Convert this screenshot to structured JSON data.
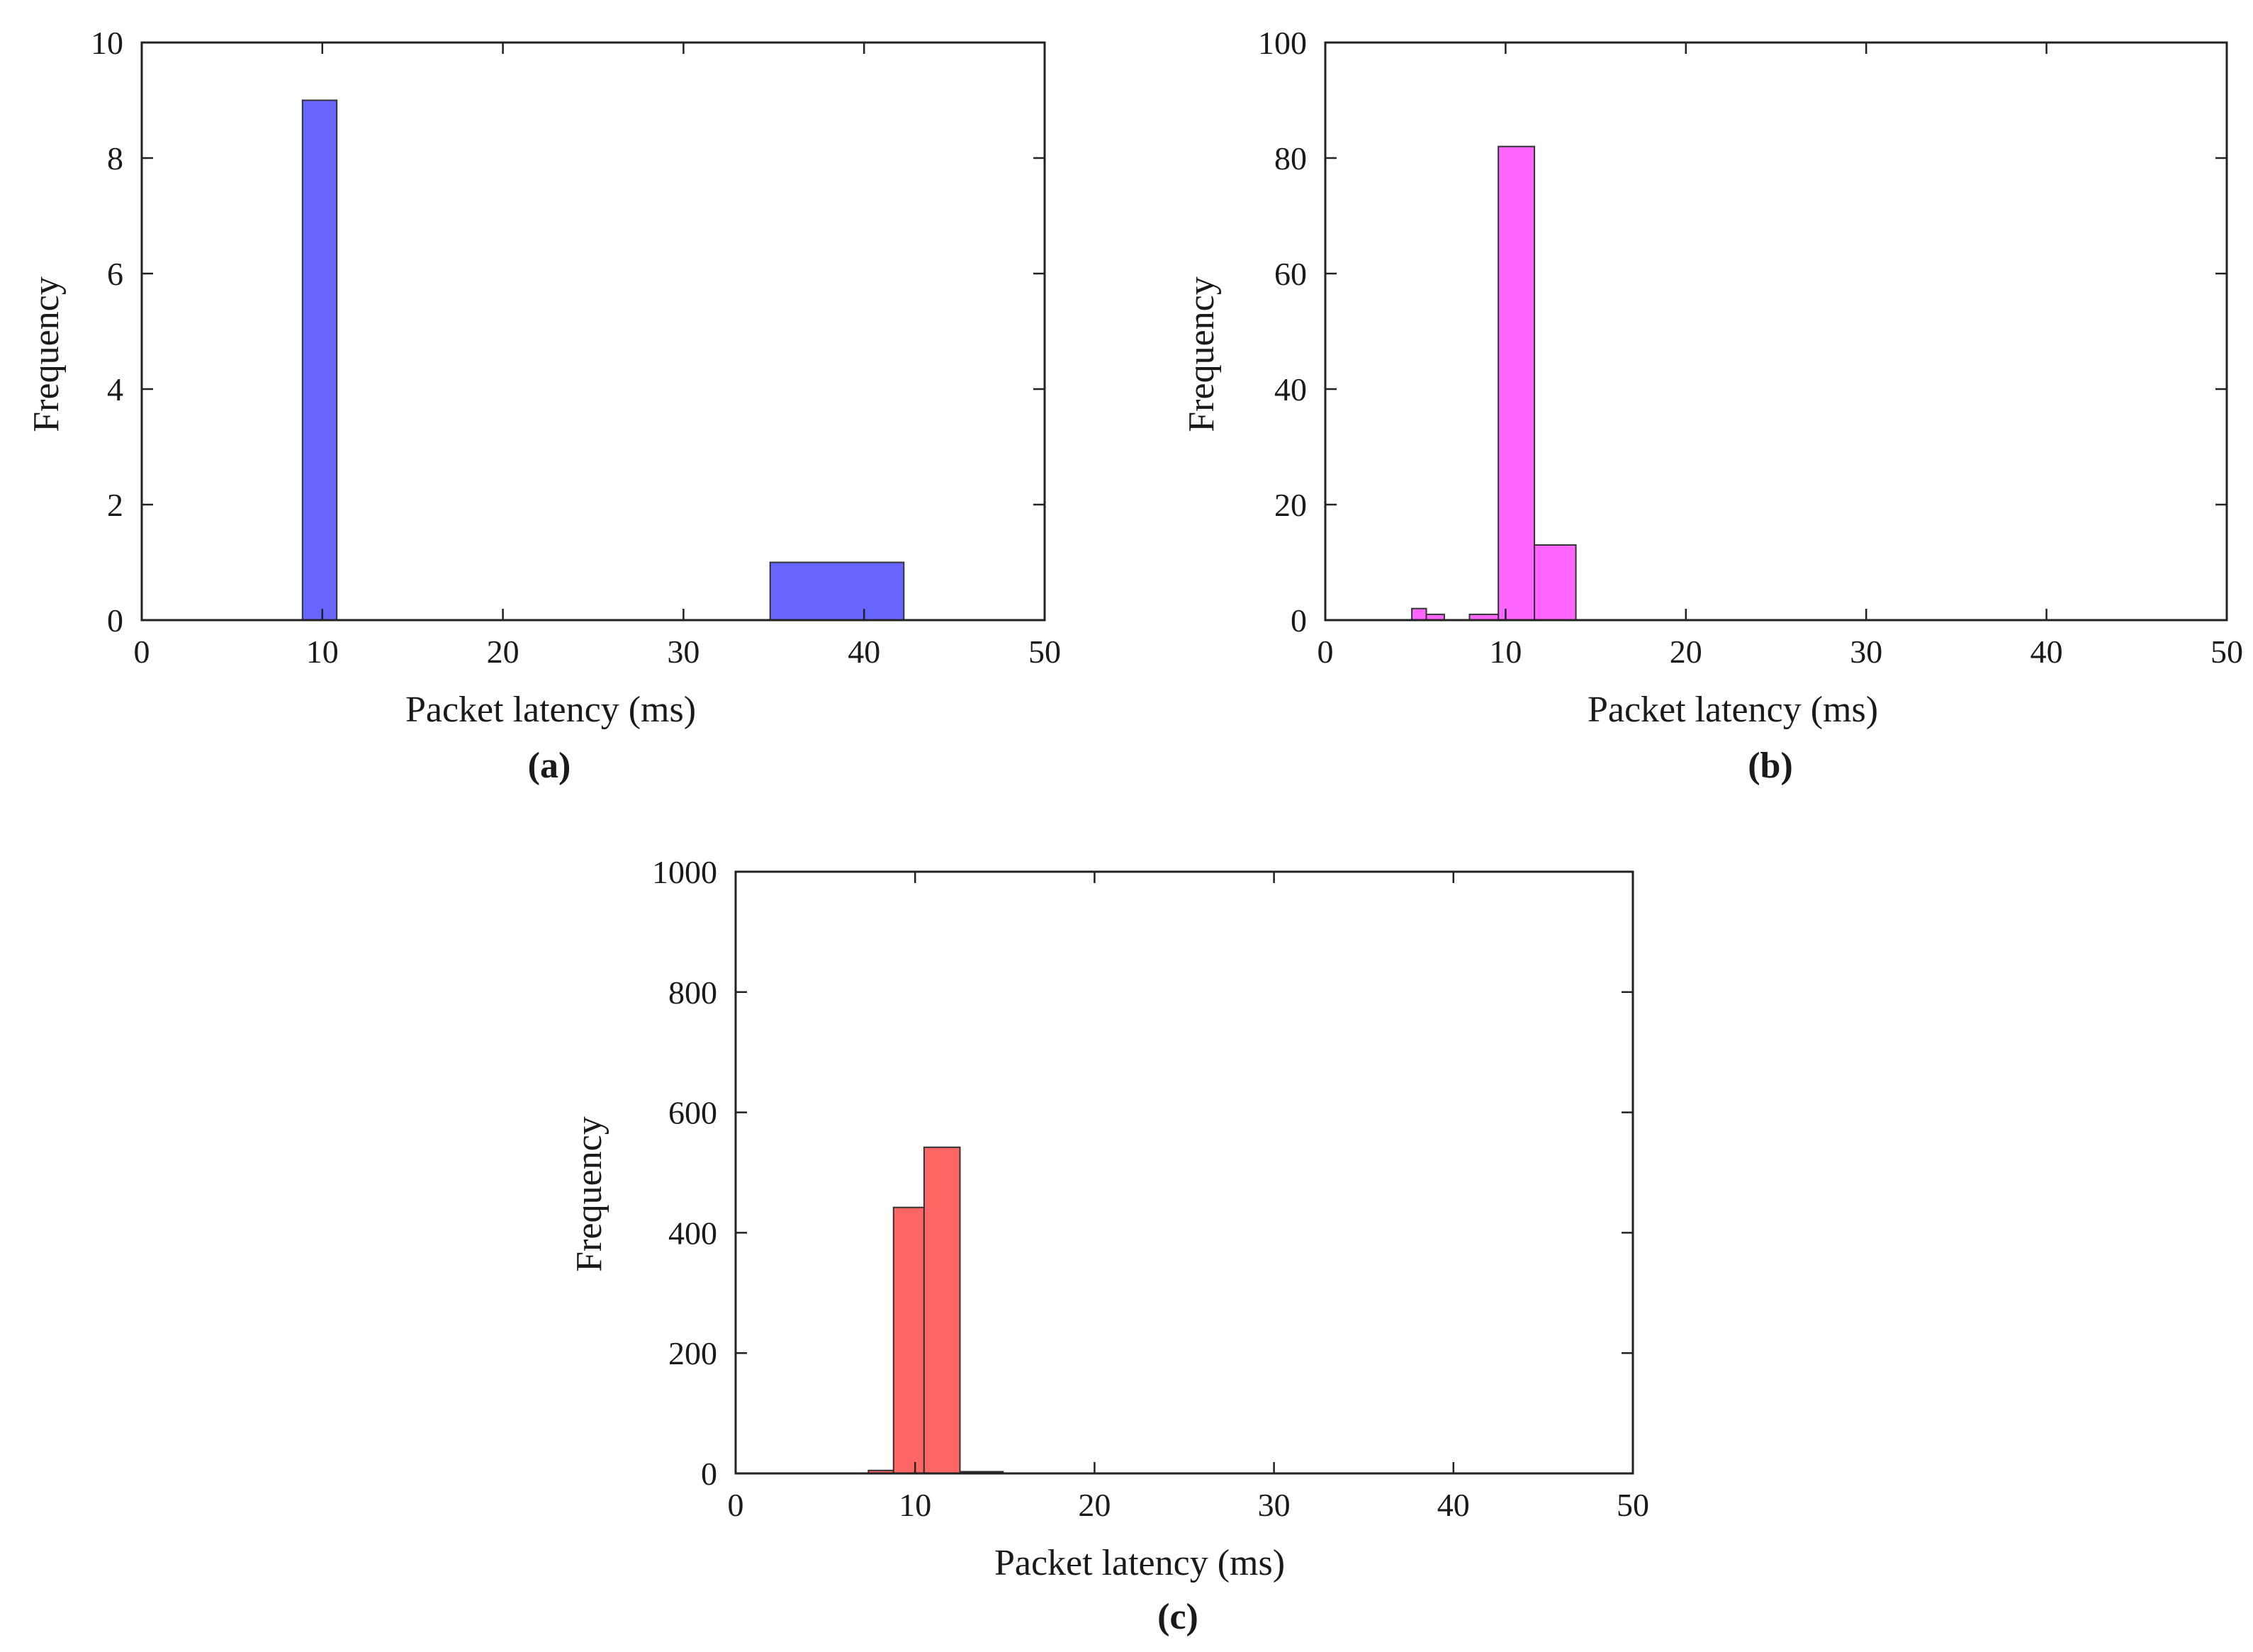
{
  "chart_data": [
    {
      "type": "bar",
      "panel": "a",
      "caption": "(a)",
      "xlabel": "Packet latency (ms)",
      "ylabel": "Frequency",
      "xlim": [
        0,
        50
      ],
      "ylim": [
        0,
        10
      ],
      "xticks": [
        "0",
        "10",
        "20",
        "30",
        "40",
        "50"
      ],
      "yticks": [
        "0",
        "2",
        "4",
        "6",
        "8",
        "10"
      ],
      "color": "#6666ff",
      "bins": [
        {
          "start": 8.9,
          "end": 10.8,
          "count": 9
        },
        {
          "start": 34.8,
          "end": 42.2,
          "count": 1
        }
      ]
    },
    {
      "type": "bar",
      "panel": "b",
      "caption": "(b)",
      "xlabel": "Packet latency (ms)",
      "ylabel": "Frequency",
      "xlim": [
        0,
        50
      ],
      "ylim": [
        0,
        100
      ],
      "xticks": [
        "0",
        "10",
        "20",
        "30",
        "40",
        "50"
      ],
      "yticks": [
        "0",
        "20",
        "40",
        "60",
        "80",
        "100"
      ],
      "color": "#ff66ff",
      "bins": [
        {
          "start": 4.8,
          "end": 5.6,
          "count": 2
        },
        {
          "start": 5.6,
          "end": 6.6,
          "count": 1
        },
        {
          "start": 8.0,
          "end": 9.6,
          "count": 1
        },
        {
          "start": 9.6,
          "end": 11.6,
          "count": 82
        },
        {
          "start": 11.6,
          "end": 13.9,
          "count": 13
        }
      ]
    },
    {
      "type": "bar",
      "panel": "c",
      "caption": "(c)",
      "xlabel": "Packet latency (ms)",
      "ylabel": "Frequency",
      "xlim": [
        0,
        50
      ],
      "ylim": [
        0,
        1000
      ],
      "xticks": [
        "0",
        "10",
        "20",
        "30",
        "40",
        "50"
      ],
      "yticks": [
        "0",
        "200",
        "400",
        "600",
        "800",
        "1000"
      ],
      "color": "#ff6666",
      "bins": [
        {
          "start": 7.4,
          "end": 8.8,
          "count": 5
        },
        {
          "start": 8.8,
          "end": 10.5,
          "count": 442
        },
        {
          "start": 10.5,
          "end": 12.5,
          "count": 542
        },
        {
          "start": 12.5,
          "end": 14.9,
          "count": 3
        }
      ]
    }
  ]
}
